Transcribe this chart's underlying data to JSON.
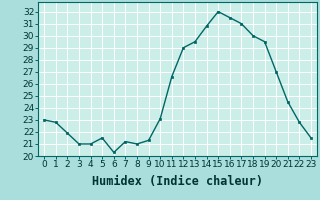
{
  "x": [
    0,
    1,
    2,
    3,
    4,
    5,
    6,
    7,
    8,
    9,
    10,
    11,
    12,
    13,
    14,
    15,
    16,
    17,
    18,
    19,
    20,
    21,
    22,
    23
  ],
  "y": [
    23.0,
    22.8,
    21.9,
    21.0,
    21.0,
    21.5,
    20.3,
    21.2,
    21.0,
    21.3,
    23.1,
    26.6,
    29.0,
    29.5,
    30.8,
    32.0,
    31.5,
    31.0,
    30.0,
    29.5,
    27.0,
    24.5,
    22.8,
    21.5
  ],
  "line_color": "#006666",
  "marker_color": "#006666",
  "bg_color": "#aadedc",
  "plot_bg_color": "#cceee8",
  "grid_color": "#ffffff",
  "xlabel": "Humidex (Indice chaleur)",
  "ylabel": "",
  "title": "",
  "xlim": [
    -0.5,
    23.5
  ],
  "ylim": [
    20,
    32.8
  ],
  "yticks": [
    20,
    21,
    22,
    23,
    24,
    25,
    26,
    27,
    28,
    29,
    30,
    31,
    32
  ],
  "xticks": [
    0,
    1,
    2,
    3,
    4,
    5,
    6,
    7,
    8,
    9,
    10,
    11,
    12,
    13,
    14,
    15,
    16,
    17,
    18,
    19,
    20,
    21,
    22,
    23
  ],
  "xtick_labels": [
    "0",
    "1",
    "2",
    "3",
    "4",
    "5",
    "6",
    "7",
    "8",
    "9",
    "10",
    "11",
    "12",
    "13",
    "14",
    "15",
    "16",
    "17",
    "18",
    "19",
    "20",
    "21",
    "22",
    "23"
  ],
  "font_color": "#003333",
  "tick_fontsize": 6.5,
  "xlabel_fontsize": 8.5
}
